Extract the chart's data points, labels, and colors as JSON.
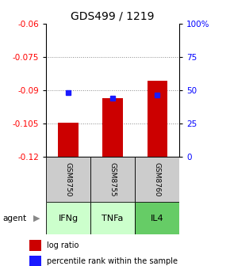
{
  "title": "GDS499 / 1219",
  "categories": [
    "IFNg",
    "TNFa",
    "IL4"
  ],
  "gsm_labels": [
    "GSM8750",
    "GSM8755",
    "GSM8760"
  ],
  "log_ratios": [
    -0.1045,
    -0.0935,
    -0.0855
  ],
  "percentile_ranks": [
    48.5,
    44.0,
    46.5
  ],
  "ylim_left": [
    -0.12,
    -0.06
  ],
  "yticks_left": [
    -0.12,
    -0.105,
    -0.09,
    -0.075,
    -0.06
  ],
  "yticks_right_labels": [
    "0",
    "25",
    "50",
    "75",
    "100%"
  ],
  "yticks_right_pct": [
    0,
    25,
    50,
    75,
    100
  ],
  "bar_color": "#cc0000",
  "dot_color": "#1a1aff",
  "agent_colors": [
    "#ccffcc",
    "#ccffcc",
    "#66cc66"
  ],
  "gsm_bg_color": "#cccccc",
  "legend_bar_label": "log ratio",
  "legend_dot_label": "percentile rank within the sample",
  "agent_label": "agent"
}
